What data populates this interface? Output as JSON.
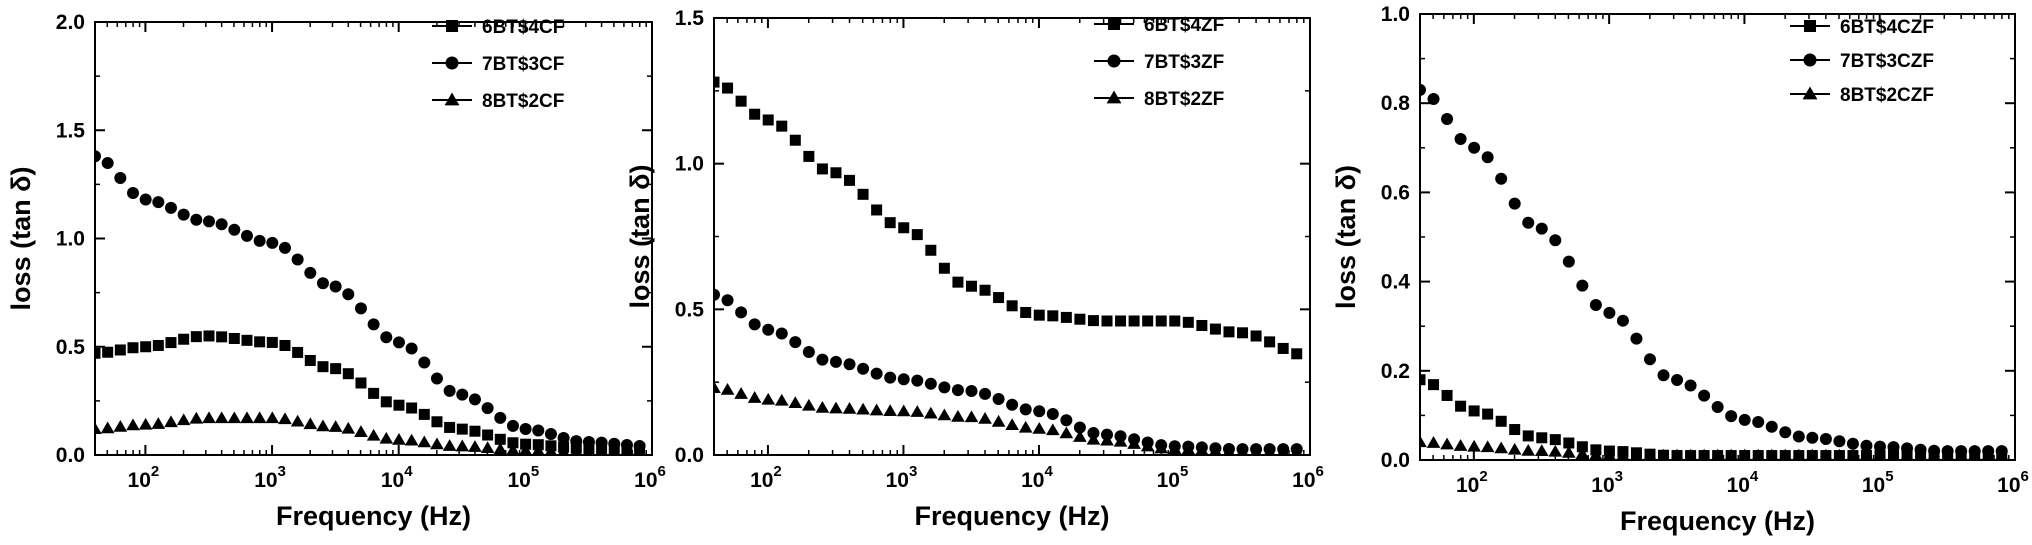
{
  "colors": {
    "ink": "#000000",
    "background": "#ffffff"
  },
  "chart_data": [
    {
      "type": "scatter",
      "xlabel": "Frequency (Hz)",
      "ylabel": "loss (tan δ)",
      "xscale": "log",
      "xlim": [
        40,
        1000000
      ],
      "ylim": [
        0,
        2.0
      ],
      "yticks": [
        "0.0",
        "0.5",
        "1.0",
        "1.5",
        "2.0"
      ],
      "yticks_values": [
        0,
        0.5,
        1.0,
        1.5,
        2.0
      ],
      "xticks": [
        {
          "value": 100,
          "base": "10",
          "exp": "2"
        },
        {
          "value": 1000,
          "base": "10",
          "exp": "3"
        },
        {
          "value": 10000,
          "base": "10",
          "exp": "4"
        },
        {
          "value": 100000,
          "base": "10",
          "exp": "5"
        },
        {
          "value": 1000000,
          "base": "10",
          "exp": "6"
        }
      ],
      "legend_position": "top-right",
      "grid": false,
      "series": [
        {
          "name": "6BT$4CF",
          "marker": "square",
          "x": [
            40,
            100,
            300,
            1000,
            3000,
            10000,
            30000,
            100000,
            300000,
            1000000
          ],
          "y": [
            0.47,
            0.5,
            0.55,
            0.52,
            0.4,
            0.23,
            0.12,
            0.05,
            0.03,
            0.03
          ]
        },
        {
          "name": "7BT$3CF",
          "marker": "circle",
          "x": [
            40,
            100,
            300,
            1000,
            3000,
            10000,
            30000,
            100000,
            300000,
            1000000
          ],
          "y": [
            1.38,
            1.18,
            1.08,
            0.98,
            0.78,
            0.52,
            0.28,
            0.12,
            0.06,
            0.04
          ]
        },
        {
          "name": "8BT$2CF",
          "marker": "triangle",
          "x": [
            40,
            100,
            300,
            1000,
            3000,
            10000,
            30000,
            100000,
            300000,
            1000000
          ],
          "y": [
            0.12,
            0.14,
            0.17,
            0.17,
            0.13,
            0.07,
            0.04,
            0.02,
            0.01,
            0.01
          ]
        }
      ]
    },
    {
      "type": "scatter",
      "xlabel": "Frequency (Hz)",
      "ylabel": "loss (tan δ)",
      "xscale": "log",
      "xlim": [
        40,
        1000000
      ],
      "ylim": [
        0,
        1.5
      ],
      "yticks": [
        "0.0",
        "0.5",
        "1.0",
        "1.5"
      ],
      "yticks_values": [
        0,
        0.5,
        1.0,
        1.5
      ],
      "xticks": [
        {
          "value": 100,
          "base": "10",
          "exp": "2"
        },
        {
          "value": 1000,
          "base": "10",
          "exp": "3"
        },
        {
          "value": 10000,
          "base": "10",
          "exp": "4"
        },
        {
          "value": 100000,
          "base": "10",
          "exp": "5"
        },
        {
          "value": 1000000,
          "base": "10",
          "exp": "6"
        }
      ],
      "legend_position": "top-right",
      "grid": false,
      "series": [
        {
          "name": "6BT$4ZF",
          "marker": "square",
          "x": [
            40,
            100,
            300,
            1000,
            3000,
            10000,
            30000,
            100000,
            300000,
            1000000
          ],
          "y": [
            1.28,
            1.15,
            0.97,
            0.78,
            0.58,
            0.48,
            0.46,
            0.46,
            0.42,
            0.34
          ]
        },
        {
          "name": "7BT$3ZF",
          "marker": "circle",
          "x": [
            40,
            100,
            300,
            1000,
            3000,
            10000,
            30000,
            100000,
            300000,
            1000000
          ],
          "y": [
            0.55,
            0.43,
            0.32,
            0.26,
            0.22,
            0.15,
            0.07,
            0.03,
            0.02,
            0.02
          ]
        },
        {
          "name": "8BT$2ZF",
          "marker": "triangle",
          "x": [
            40,
            100,
            300,
            1000,
            3000,
            10000,
            30000,
            100000,
            300000,
            1000000
          ],
          "y": [
            0.23,
            0.19,
            0.16,
            0.15,
            0.13,
            0.09,
            0.05,
            0.02,
            0.01,
            0.01
          ]
        }
      ]
    },
    {
      "type": "scatter",
      "xlabel": "Frequency (Hz)",
      "ylabel": "loss (tan δ)",
      "xscale": "log",
      "xlim": [
        40,
        1000000
      ],
      "ylim": [
        0,
        1.0
      ],
      "yticks": [
        "0.0",
        "0.2",
        "0.4",
        "0.6",
        "0.8",
        "1.0"
      ],
      "yticks_values": [
        0,
        0.2,
        0.4,
        0.6,
        0.8,
        1.0
      ],
      "xticks": [
        {
          "value": 100,
          "base": "10",
          "exp": "2"
        },
        {
          "value": 1000,
          "base": "10",
          "exp": "3"
        },
        {
          "value": 10000,
          "base": "10",
          "exp": "4"
        },
        {
          "value": 100000,
          "base": "10",
          "exp": "5"
        },
        {
          "value": 1000000,
          "base": "10",
          "exp": "6"
        }
      ],
      "legend_position": "top-right",
      "grid": false,
      "series": [
        {
          "name": "6BT$4CZF",
          "marker": "square",
          "x": [
            40,
            100,
            300,
            1000,
            3000,
            10000,
            30000,
            100000,
            300000,
            1000000
          ],
          "y": [
            0.18,
            0.11,
            0.05,
            0.02,
            0.01,
            0.01,
            0.01,
            0.01,
            0.01,
            0.01
          ]
        },
        {
          "name": "7BT$3CZF",
          "marker": "circle",
          "x": [
            40,
            100,
            300,
            1000,
            3000,
            10000,
            30000,
            100000,
            300000,
            1000000
          ],
          "y": [
            0.83,
            0.7,
            0.52,
            0.33,
            0.18,
            0.09,
            0.05,
            0.03,
            0.02,
            0.02
          ]
        },
        {
          "name": "8BT$2CZF",
          "marker": "triangle",
          "x": [
            40,
            100,
            300,
            1000,
            3000,
            10000,
            30000,
            100000,
            300000,
            1000000
          ],
          "y": [
            0.04,
            0.03,
            0.02,
            0.01,
            0.01,
            0.01,
            0.01,
            0.01,
            0.01,
            0.01
          ]
        }
      ]
    }
  ]
}
